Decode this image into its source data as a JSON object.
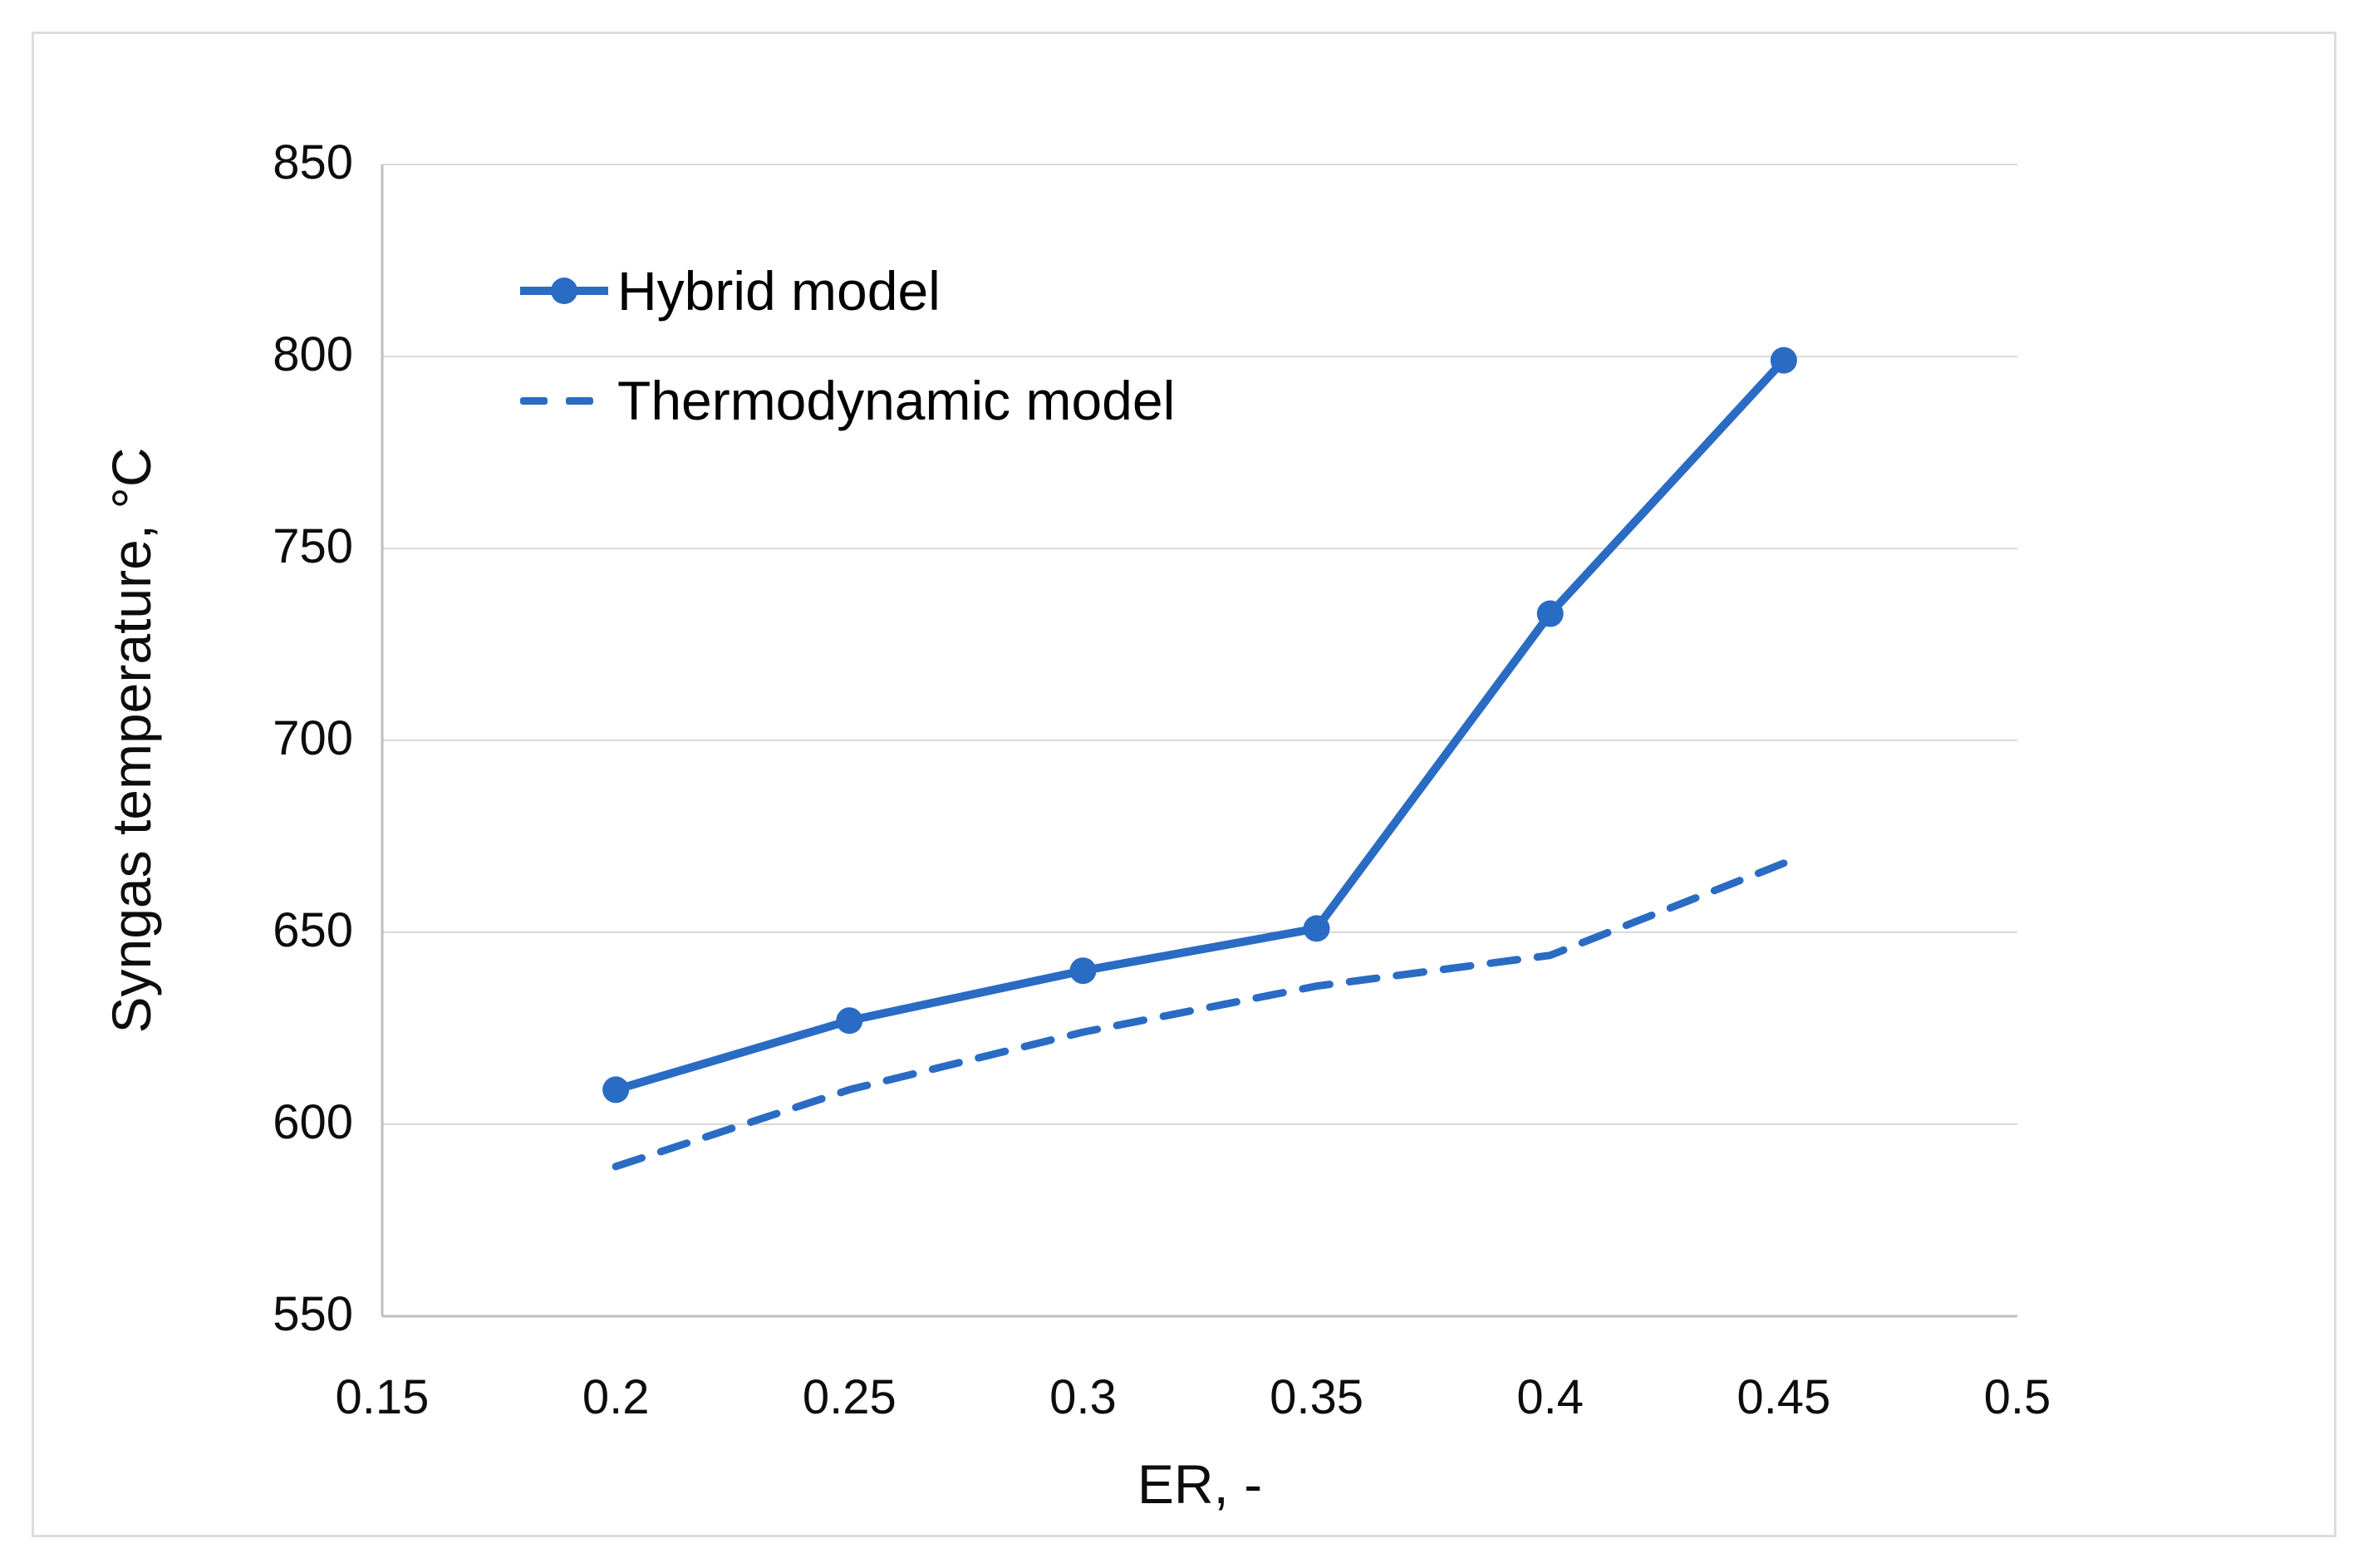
{
  "figure": {
    "background_color": "#FFFFFF",
    "frame_border_color": "#DCDCDC"
  },
  "chart_data": {
    "type": "line",
    "x": [
      0.2,
      0.25,
      0.3,
      0.35,
      0.4,
      0.45
    ],
    "series": [
      {
        "name": "Hybrid model",
        "values": [
          609,
          627,
          640,
          651,
          733,
          799
        ],
        "line_style": "solid",
        "marker": "circle"
      },
      {
        "name": "Thermodynamic model",
        "values": [
          589,
          609,
          624,
          636,
          644,
          668
        ],
        "line_style": "dashed",
        "marker": "none"
      }
    ],
    "title": "",
    "xlabel": "ER, -",
    "ylabel": "Syngas temperature, °C",
    "xlim": [
      0.15,
      0.5
    ],
    "ylim": [
      550,
      850
    ],
    "xticks": [
      0.15,
      0.2,
      0.25,
      0.3,
      0.35,
      0.4,
      0.45,
      0.5
    ],
    "xtick_labels": [
      "0.15",
      "0.2",
      "0.25",
      "0.3",
      "0.35",
      "0.4",
      "0.45",
      "0.5"
    ],
    "yticks": [
      550,
      600,
      650,
      700,
      750,
      800,
      850
    ],
    "ytick_labels": [
      "550",
      "600",
      "650",
      "700",
      "750",
      "800",
      "850"
    ],
    "grid": "horizontal",
    "legend_position": "top-left-inside",
    "colors": {
      "line": "#2A6BC4",
      "gridline": "#D9D9D9",
      "axis_line": "#BFBFBF",
      "text": "#0D0D0D"
    }
  }
}
